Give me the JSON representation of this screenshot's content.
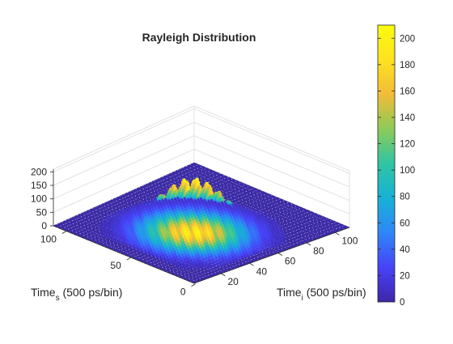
{
  "chart_data": {
    "type": "bar3d",
    "title": "Rayleigh Distribution",
    "xlabel": {
      "main": "Time",
      "sub": "i",
      "rest": " (500 ps/bin)"
    },
    "ylabel": {
      "main": "Time",
      "sub": "s",
      "rest": " (500 ps/bin)"
    },
    "zlim": [
      0,
      210
    ],
    "z_ticks": [
      0,
      50,
      100,
      150,
      200
    ],
    "xi_ticks": [
      20,
      40,
      60,
      80,
      100
    ],
    "ts_ticks": [
      0,
      50,
      100
    ],
    "xi_range": [
      1,
      110
    ],
    "ts_range": [
      1,
      110
    ],
    "peak_value": 207,
    "peak_location": {
      "time_i": 45,
      "time_s": 50
    },
    "colorbar": {
      "range": [
        0,
        210
      ],
      "ticks": [
        0,
        20,
        40,
        60,
        80,
        100,
        120,
        140,
        160,
        180,
        200
      ],
      "colormap": [
        "#3e26a8",
        "#4743f8",
        "#2e87f7",
        "#18b1d6",
        "#2fc5a3",
        "#8dcb58",
        "#f2bc38",
        "#fde21f",
        "#f9fb0e"
      ]
    },
    "grid": true,
    "legend": "colorbar-right"
  }
}
